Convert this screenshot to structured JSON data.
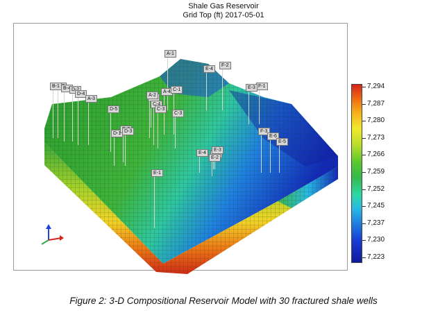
{
  "title": "Shale Gas Reservoir",
  "subtitle": "Grid Top (ft) 2017-05-01",
  "legend_ticks": [
    "7,294",
    "7,287",
    "7,280",
    "7,273",
    "7,266",
    "7,259",
    "7,252",
    "7,245",
    "7,237",
    "7,230",
    "7,223"
  ],
  "wells": [
    "A-1",
    "E-4",
    "F-2",
    "B-3",
    "B-4",
    "D-2",
    "D-4",
    "A-3",
    "A-4",
    "C-1",
    "C-2",
    "C-4",
    "D-5",
    "C-3",
    "C-3",
    "E-2",
    "E-3",
    "F-1",
    "D-1",
    "D-3",
    "E-1",
    "E-4",
    "E-3",
    "E-2",
    "F-3",
    "E-6",
    "E-5",
    "B-1",
    "A-2",
    "D-3"
  ],
  "caption": "Figure 2: 3-D Compositional Reservoir Model with 30 fractured shale wells",
  "colors": {
    "high": "#d62418",
    "mid": "#35b94a",
    "low": "#101a9c"
  }
}
